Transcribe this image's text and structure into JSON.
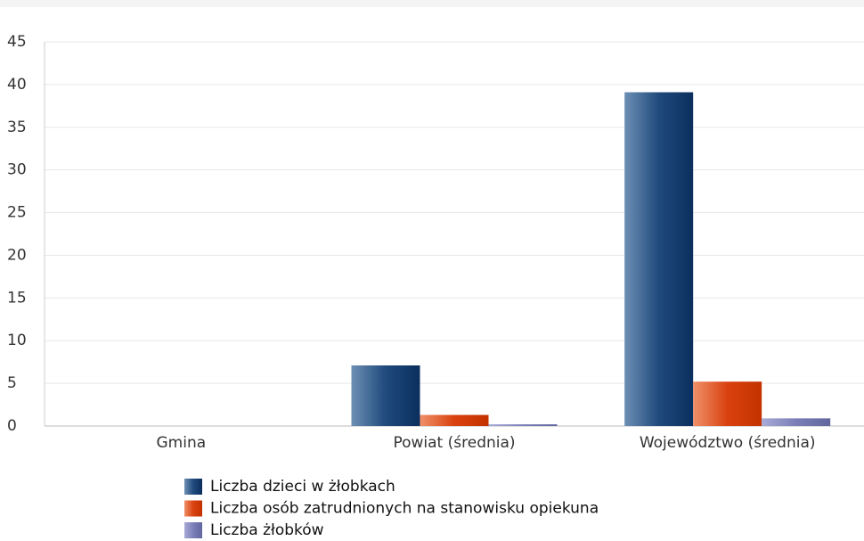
{
  "chart_data": {
    "type": "bar",
    "categories": [
      "Gmina",
      "Powiat (średnia)",
      "Województwo (średnia)"
    ],
    "series": [
      {
        "name": "Liczba dzieci w żłobkach",
        "color": "#1f4a7c",
        "values": [
          0,
          7.1,
          39.1
        ]
      },
      {
        "name": "Liczba osób zatrudnionych na stanowisku opiekuna",
        "color": "#d9420f",
        "values": [
          0,
          1.3,
          5.2
        ]
      },
      {
        "name": "Liczba żłobków",
        "color": "#7b7fb8",
        "values": [
          0,
          0.2,
          0.9
        ]
      }
    ],
    "ylim": [
      0,
      45
    ],
    "yticks": [
      0,
      5,
      10,
      15,
      20,
      25,
      30,
      35,
      40,
      45
    ],
    "grid": true,
    "legend": "bottom"
  }
}
